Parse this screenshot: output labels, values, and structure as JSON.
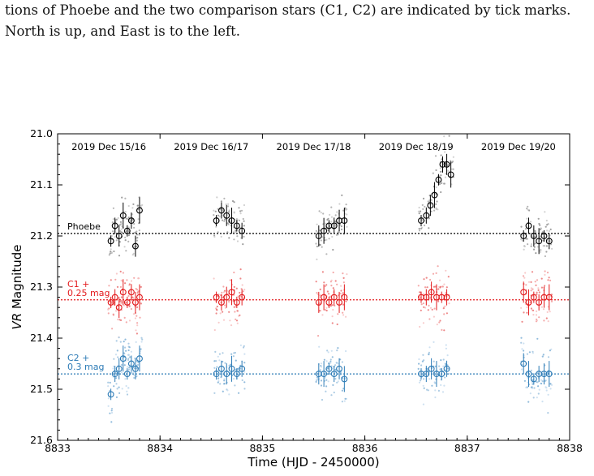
{
  "caption": {
    "line1": "tions of Phoebe and the two comparison stars (C1, C2) are indicated by tick marks.",
    "line2": "North is up, and East is to the left."
  },
  "chart_data": {
    "type": "scatter",
    "title": "",
    "xlabel": "Time (HJD - 2450000)",
    "ylabel_italic": "VR",
    "ylabel_rest": " Magnitude",
    "xlim": [
      8833,
      8838
    ],
    "ylim": [
      21.6,
      21.0
    ],
    "y_inverted": true,
    "xticks": [
      8833,
      8834,
      8835,
      8836,
      8837,
      8838
    ],
    "yticks": [
      21.0,
      21.1,
      21.2,
      21.3,
      21.4,
      21.5,
      21.6
    ],
    "grid": false,
    "nights": [
      "2019 Dec 15/16",
      "2019 Dec 16/17",
      "2019 Dec 17/18",
      "2019 Dec 18/19",
      "2019 Dec 19/20"
    ],
    "reference_lines": [
      {
        "label": "Phoebe",
        "y": 21.195,
        "color": "#000000"
      },
      {
        "label": "C1 +\n0.25 mag",
        "y": 21.325,
        "color": "#e31a1c"
      },
      {
        "label": "C2 +\n0.3 mag",
        "y": 21.47,
        "color": "#2c7bb6"
      }
    ],
    "series": [
      {
        "name": "Phoebe",
        "color": "#000000",
        "x": [
          8833.52,
          8833.56,
          8833.6,
          8833.64,
          8833.68,
          8833.72,
          8833.76,
          8833.8,
          8834.55,
          8834.6,
          8834.65,
          8834.7,
          8834.75,
          8834.8,
          8835.55,
          8835.6,
          8835.65,
          8835.7,
          8835.75,
          8835.8,
          8836.55,
          8836.6,
          8836.64,
          8836.68,
          8836.72,
          8836.76,
          8836.8,
          8836.84,
          8837.55,
          8837.6,
          8837.65,
          8837.7,
          8837.75,
          8837.8
        ],
        "y": [
          21.21,
          21.18,
          21.2,
          21.16,
          21.19,
          21.17,
          21.22,
          21.15,
          21.17,
          21.15,
          21.16,
          21.17,
          21.18,
          21.19,
          21.2,
          21.19,
          21.18,
          21.18,
          21.17,
          21.17,
          21.17,
          21.16,
          21.14,
          21.12,
          21.09,
          21.06,
          21.06,
          21.08,
          21.2,
          21.18,
          21.2,
          21.21,
          21.2,
          21.21
        ]
      },
      {
        "name": "C1",
        "color": "#e31a1c",
        "x": [
          8833.52,
          8833.56,
          8833.6,
          8833.64,
          8833.68,
          8833.72,
          8833.76,
          8833.8,
          8834.55,
          8834.6,
          8834.65,
          8834.7,
          8834.75,
          8834.8,
          8835.55,
          8835.6,
          8835.65,
          8835.7,
          8835.75,
          8835.8,
          8836.55,
          8836.6,
          8836.65,
          8836.7,
          8836.75,
          8836.8,
          8837.55,
          8837.6,
          8837.65,
          8837.7,
          8837.75,
          8837.8
        ],
        "y": [
          21.33,
          21.32,
          21.34,
          21.31,
          21.33,
          21.31,
          21.33,
          21.32,
          21.32,
          21.33,
          21.32,
          21.31,
          21.33,
          21.32,
          21.33,
          21.32,
          21.33,
          21.32,
          21.33,
          21.32,
          21.32,
          21.32,
          21.31,
          21.32,
          21.32,
          21.32,
          21.31,
          21.33,
          21.32,
          21.33,
          21.32,
          21.32
        ]
      },
      {
        "name": "C2",
        "color": "#2c7bb6",
        "x": [
          8833.52,
          8833.56,
          8833.6,
          8833.64,
          8833.68,
          8833.72,
          8833.76,
          8833.8,
          8834.55,
          8834.6,
          8834.65,
          8834.7,
          8834.75,
          8834.8,
          8835.55,
          8835.6,
          8835.65,
          8835.7,
          8835.75,
          8835.8,
          8836.55,
          8836.6,
          8836.65,
          8836.7,
          8836.75,
          8836.8,
          8837.55,
          8837.6,
          8837.65,
          8837.7,
          8837.75,
          8837.8
        ],
        "y": [
          21.51,
          21.47,
          21.46,
          21.44,
          21.47,
          21.45,
          21.46,
          21.44,
          21.47,
          21.46,
          21.47,
          21.46,
          21.47,
          21.46,
          21.47,
          21.47,
          21.46,
          21.47,
          21.46,
          21.48,
          21.47,
          21.47,
          21.46,
          21.47,
          21.47,
          21.46,
          21.45,
          21.47,
          21.48,
          21.47,
          21.47,
          21.47
        ]
      }
    ]
  }
}
